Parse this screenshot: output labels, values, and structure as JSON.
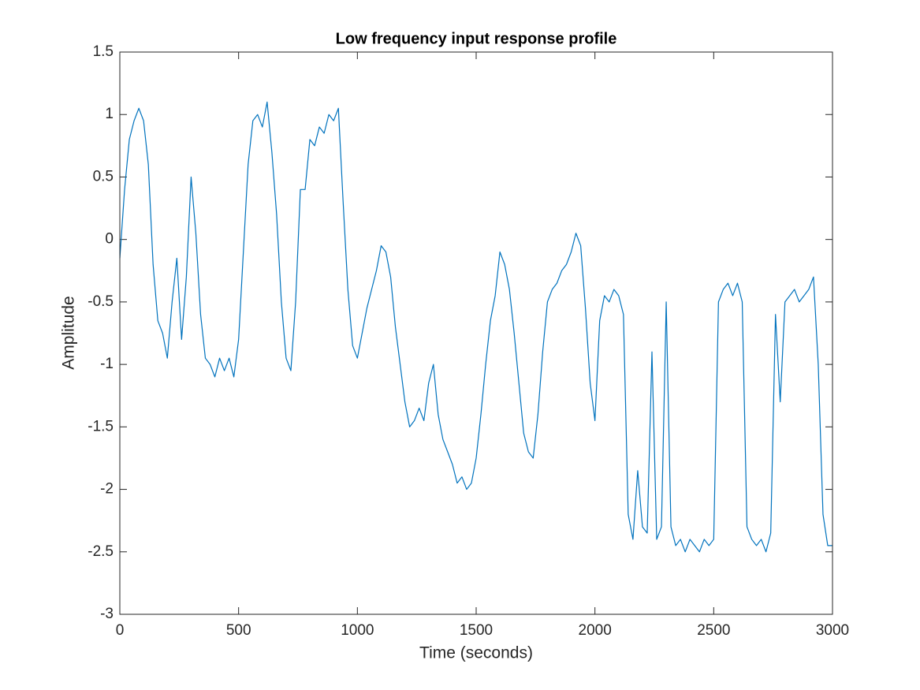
{
  "chart_data": {
    "type": "line",
    "title": "Low frequency input response profile",
    "x_label": "Time (seconds)",
    "y_label": "Amplitude",
    "x": [
      0,
      20,
      40,
      60,
      80,
      100,
      120,
      140,
      160,
      180,
      200,
      220,
      240,
      260,
      280,
      300,
      320,
      340,
      360,
      380,
      400,
      420,
      440,
      460,
      480,
      500,
      520,
      540,
      560,
      580,
      600,
      620,
      640,
      660,
      680,
      700,
      720,
      740,
      760,
      780,
      800,
      820,
      840,
      860,
      880,
      900,
      920,
      940,
      960,
      980,
      1000,
      1020,
      1040,
      1060,
      1080,
      1100,
      1120,
      1140,
      1160,
      1180,
      1200,
      1220,
      1240,
      1260,
      1280,
      1300,
      1320,
      1340,
      1360,
      1380,
      1400,
      1420,
      1440,
      1460,
      1480,
      1500,
      1520,
      1540,
      1560,
      1580,
      1600,
      1620,
      1640,
      1660,
      1680,
      1700,
      1720,
      1740,
      1760,
      1780,
      1800,
      1820,
      1840,
      1860,
      1880,
      1900,
      1920,
      1940,
      1960,
      1980,
      2000,
      2020,
      2040,
      2060,
      2080,
      2100,
      2120,
      2140,
      2160,
      2180,
      2200,
      2220,
      2240,
      2260,
      2280,
      2300,
      2320,
      2340,
      2360,
      2380,
      2400,
      2420,
      2440,
      2460,
      2480,
      2500,
      2520,
      2540,
      2560,
      2580,
      2600,
      2620,
      2640,
      2660,
      2680,
      2700,
      2720,
      2740,
      2760,
      2780,
      2800,
      2820,
      2840,
      2860,
      2880,
      2900,
      2920,
      2940,
      2960,
      2980,
      3000
    ],
    "series": [
      {
        "color": "#0072bd",
        "values": [
          -0.15,
          0.4,
          0.8,
          0.95,
          1.05,
          0.95,
          0.6,
          -0.2,
          -0.65,
          -0.75,
          -0.95,
          -0.5,
          -0.15,
          -0.8,
          -0.3,
          0.5,
          0.05,
          -0.6,
          -0.95,
          -1.0,
          -1.1,
          -0.95,
          -1.05,
          -0.95,
          -1.1,
          -0.8,
          -0.1,
          0.6,
          0.95,
          1.0,
          0.9,
          1.1,
          0.7,
          0.2,
          -0.5,
          -0.95,
          -1.05,
          -0.5,
          0.4,
          0.4,
          0.8,
          0.75,
          0.9,
          0.85,
          1.0,
          0.95,
          1.05,
          0.3,
          -0.4,
          -0.85,
          -0.95,
          -0.75,
          -0.55,
          -0.4,
          -0.25,
          -0.05,
          -0.1,
          -0.3,
          -0.7,
          -1.0,
          -1.3,
          -1.5,
          -1.45,
          -1.35,
          -1.45,
          -1.15,
          -1.0,
          -1.4,
          -1.6,
          -1.7,
          -1.8,
          -1.95,
          -1.9,
          -2.0,
          -1.95,
          -1.75,
          -1.4,
          -1.0,
          -0.65,
          -0.45,
          -0.1,
          -0.2,
          -0.4,
          -0.75,
          -1.15,
          -1.55,
          -1.7,
          -1.75,
          -1.4,
          -0.9,
          -0.5,
          -0.4,
          -0.35,
          -0.25,
          -0.2,
          -0.1,
          0.05,
          -0.05,
          -0.55,
          -1.15,
          -1.45,
          -0.65,
          -0.45,
          -0.5,
          -0.4,
          -0.45,
          -0.6,
          -2.2,
          -2.4,
          -1.85,
          -2.3,
          -2.35,
          -0.9,
          -2.4,
          -2.3,
          -0.5,
          -2.3,
          -2.45,
          -2.4,
          -2.5,
          -2.4,
          -2.45,
          -2.5,
          -2.4,
          -2.45,
          -2.4,
          -0.5,
          -0.4,
          -0.35,
          -0.45,
          -0.35,
          -0.5,
          -2.3,
          -2.4,
          -2.45,
          -2.4,
          -2.5,
          -2.35,
          -0.6,
          -1.3,
          -0.5,
          -0.45,
          -0.4,
          -0.5,
          -0.45,
          -0.4,
          -0.3,
          -1.0,
          -2.2,
          -2.45,
          -2.45
        ]
      }
    ],
    "xlim": [
      0,
      3000
    ],
    "xticks": [
      0,
      500,
      1000,
      1500,
      2000,
      2500,
      3000
    ],
    "ylim": [
      -3,
      1.5
    ],
    "yticks": [
      -3,
      -2.5,
      -2,
      -1.5,
      -1,
      -0.5,
      0,
      0.5,
      1,
      1.5
    ],
    "grid": false
  }
}
